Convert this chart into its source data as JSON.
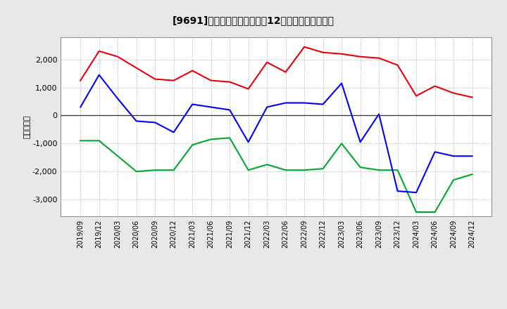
{
  "title": "[9691]　キャッシュフローの12か月移動合計の推移",
  "ylabel": "（百万円）",
  "x_labels": [
    "2019/09",
    "2019/12",
    "2020/03",
    "2020/06",
    "2020/09",
    "2020/12",
    "2021/03",
    "2021/06",
    "2021/09",
    "2021/12",
    "2022/03",
    "2022/06",
    "2022/09",
    "2022/12",
    "2023/03",
    "2023/06",
    "2023/09",
    "2023/12",
    "2024/03",
    "2024/06",
    "2024/09",
    "2024/12"
  ],
  "operating_cf": [
    1250,
    2300,
    2100,
    1700,
    1300,
    1250,
    1600,
    1250,
    1200,
    950,
    1900,
    1550,
    2450,
    2250,
    2200,
    2100,
    2050,
    1800,
    700,
    1050,
    800,
    650
  ],
  "investing_cf": [
    -900,
    -900,
    -1450,
    -2000,
    -1950,
    -1950,
    -1050,
    -850,
    -800,
    -1950,
    -1750,
    -1950,
    -1950,
    -1900,
    -1000,
    -1850,
    -1950,
    -1950,
    -3450,
    -3450,
    -2300,
    -2100
  ],
  "free_cf": [
    300,
    1450,
    600,
    -200,
    -250,
    -600,
    400,
    300,
    200,
    -950,
    300,
    450,
    450,
    400,
    1150,
    -950,
    50,
    -2700,
    -2750,
    -1300,
    -1450,
    -1450
  ],
  "operating_color": "#e8000d",
  "investing_color": "#00a832",
  "free_cf_color": "#0000ff",
  "background_color": "#e8e8e8",
  "plot_bg_color": "#ffffff",
  "grid_color": "#aaaaaa",
  "ylim": [
    -3600,
    2800
  ],
  "yticks": [
    -3000,
    -2000,
    -1000,
    0,
    1000,
    2000
  ]
}
